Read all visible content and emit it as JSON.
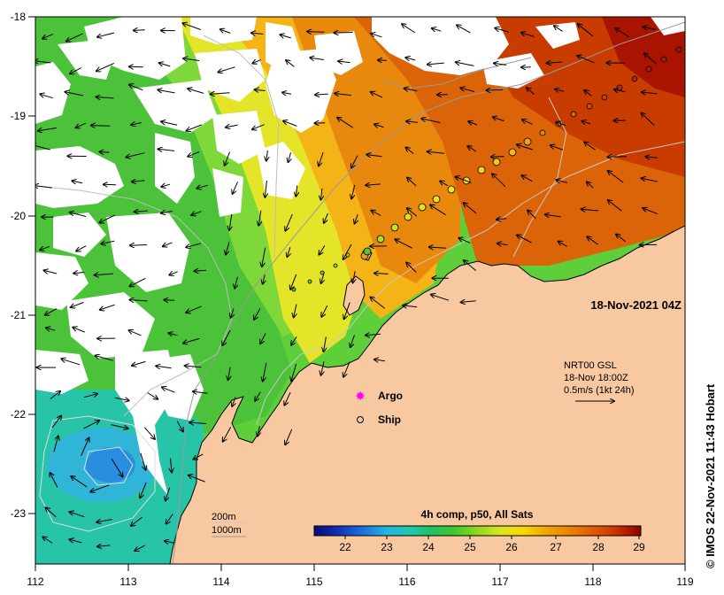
{
  "map": {
    "timestamp": "18-Nov-2021 04Z",
    "credit": "© IMOS 22-Nov-2021 11:43 Hobart",
    "lon_ticks": [
      "112",
      "113",
      "114",
      "115",
      "116",
      "117",
      "118",
      "119"
    ],
    "lat_ticks": [
      "-18",
      "-19",
      "-20",
      "-21",
      "-22",
      "-23"
    ],
    "lon_range": [
      112,
      119
    ],
    "lat_range": [
      -23.5,
      -18
    ]
  },
  "current_info": {
    "line1": "NRT00 GSL",
    "line2": "18-Nov 18:00Z",
    "line3": "0.5m/s (1kt 24h)"
  },
  "legend": {
    "argo": "Argo",
    "ship": "Ship",
    "depth_200": "200m",
    "depth_1000": "1000m",
    "argo_color": "#ff00ff"
  },
  "colorbar": {
    "title": "4h comp, p50, All Sats",
    "ticks": [
      "22",
      "23",
      "24",
      "25",
      "26",
      "27",
      "28",
      "29"
    ]
  },
  "palette": {
    "land": "#f8c8a0",
    "cloud": "#ffffff",
    "sst_cold": "#000080",
    "sst_warm": "#8b0000"
  }
}
